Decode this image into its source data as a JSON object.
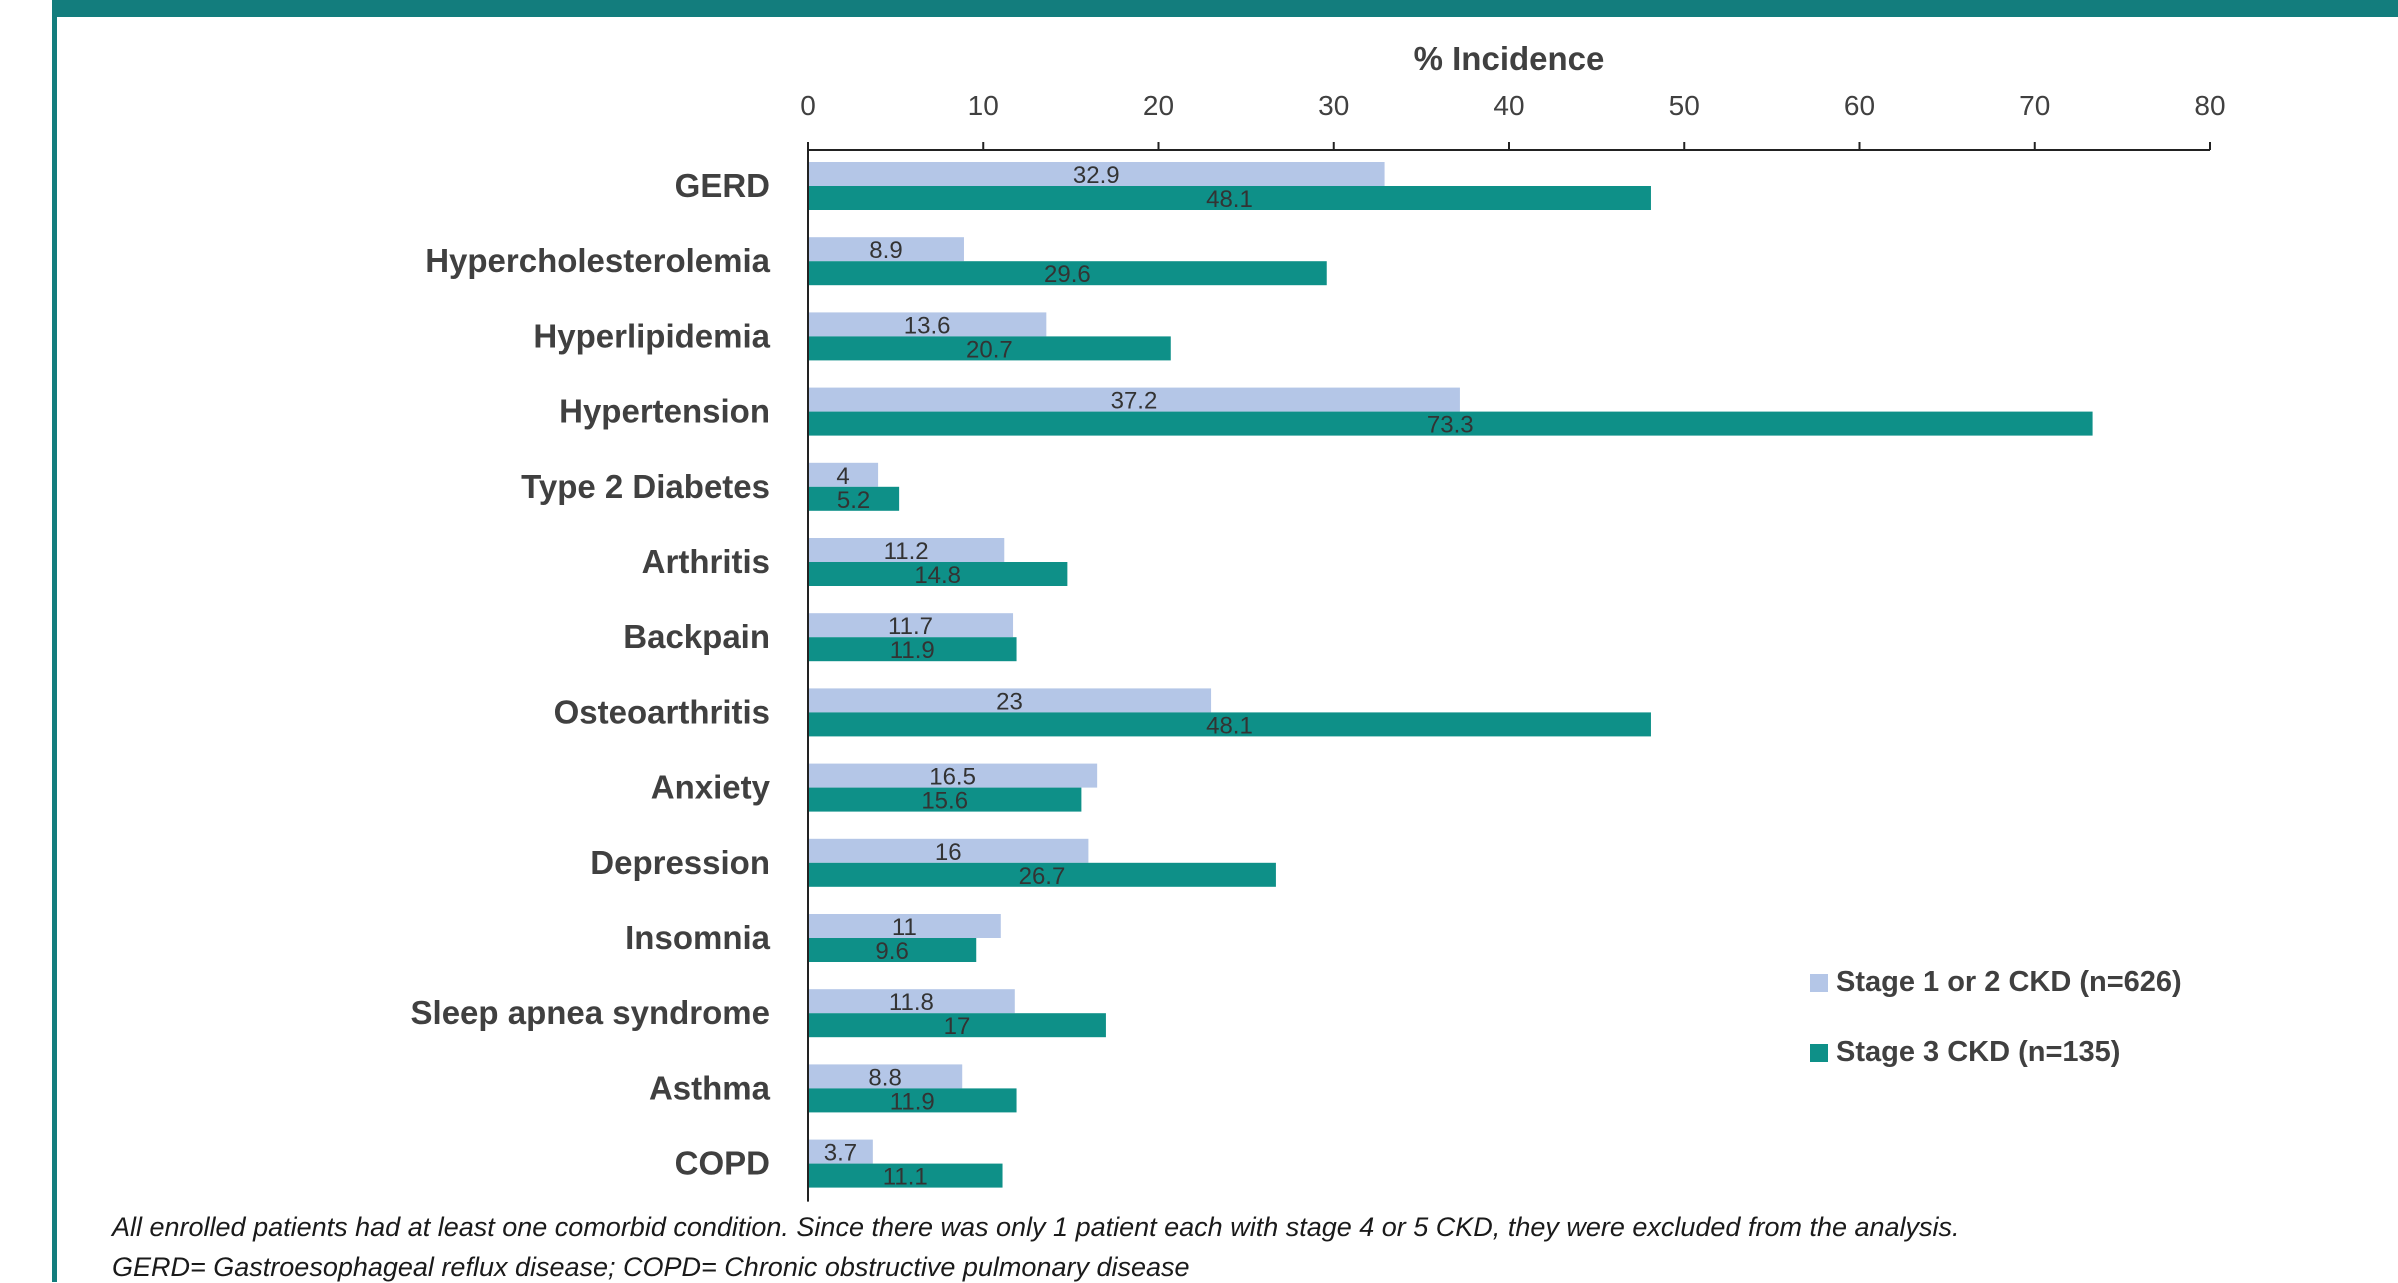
{
  "chart_data": {
    "type": "bar",
    "orientation": "horizontal",
    "xlabel": "% Incidence",
    "xlim": [
      0,
      80
    ],
    "xticks": [
      0,
      10,
      20,
      30,
      40,
      50,
      60,
      70,
      80
    ],
    "grid": false,
    "legend_position": "lower-right",
    "categories": [
      "GERD",
      "Hypercholesterolemia",
      "Hyperlipidemia",
      "Hypertension",
      "Type 2 Diabetes",
      "Arthritis",
      "Backpain",
      "Osteoarthritis",
      "Anxiety",
      "Depression",
      "Insomnia",
      "Sleep apnea syndrome",
      "Asthma",
      "COPD"
    ],
    "series": [
      {
        "name": "Stage 1 or 2 CKD (n=626)",
        "color": "#b4c6e7",
        "values": [
          32.9,
          8.9,
          13.6,
          37.2,
          4,
          11.2,
          11.7,
          23,
          16.5,
          16,
          11,
          11.8,
          8.8,
          3.7
        ],
        "labels": [
          "32.9",
          "8.9",
          "13.6",
          "37.2",
          "4",
          "11.2",
          "11.7",
          "23",
          "16.5",
          "16",
          "11",
          "11.8",
          "8.8",
          "3.7"
        ]
      },
      {
        "name": "Stage 3 CKD (n=135)",
        "color": "#0e9088",
        "values": [
          48.1,
          29.6,
          20.7,
          73.3,
          5.2,
          14.8,
          11.9,
          48.1,
          15.6,
          26.7,
          9.6,
          17,
          11.9,
          11.1
        ],
        "labels": [
          "48.1",
          "29.6",
          "20.7",
          "73.3",
          "5.2",
          "14.8",
          "11.9",
          "48.1",
          "15.6",
          "26.7",
          "9.6",
          "17",
          "11.9",
          "11.1"
        ]
      }
    ]
  },
  "footnotes": {
    "line1": "All enrolled patients had at least one comorbid condition. Since there was only 1 patient each with stage 4 or 5 CKD, they were excluded from the analysis.",
    "line2": "GERD= Gastroesophageal reflux disease; COPD= Chronic obstructive pulmonary disease"
  },
  "colors": {
    "frame": "#137d7d",
    "axis": "#222222"
  }
}
